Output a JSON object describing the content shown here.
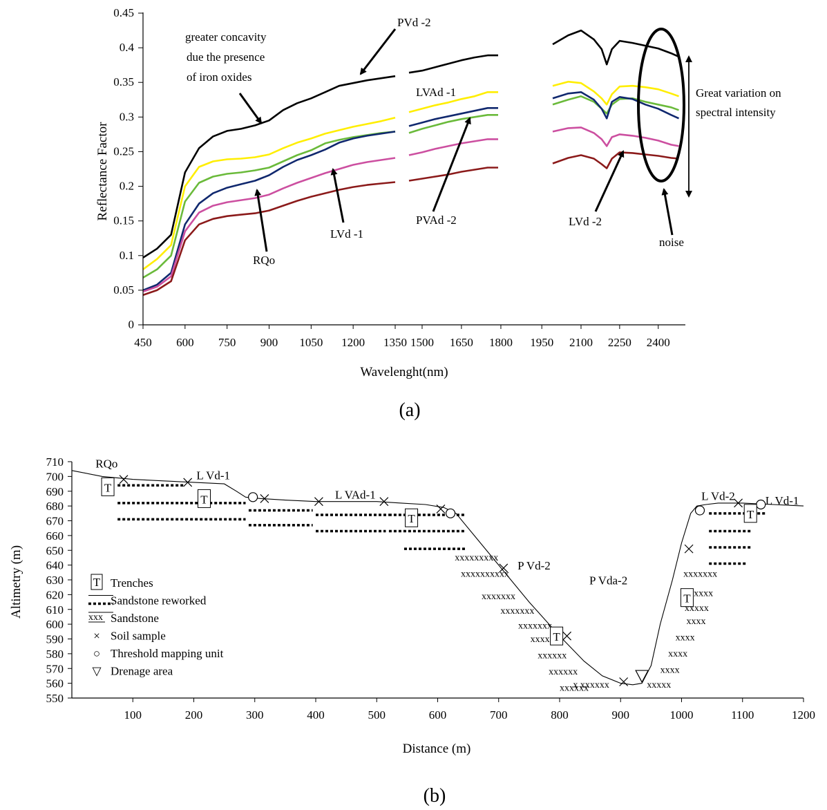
{
  "captions": {
    "a": "(a)",
    "b": "(b)"
  },
  "chart_data": [
    {
      "type": "line",
      "ylabel": "Reflectance Factor",
      "xlabel": "Wavelenght(nm)",
      "xlim": [
        450,
        2500
      ],
      "ylim": [
        0,
        0.45
      ],
      "xticks": [
        450,
        600,
        750,
        900,
        1050,
        1200,
        1350,
        1500,
        1650,
        1800,
        1950,
        2100,
        2250,
        2400
      ],
      "yticks": [
        0,
        0.05,
        0.1,
        0.15,
        0.2,
        0.25,
        0.3,
        0.35,
        0.4,
        0.45
      ],
      "ytick_labels": [
        "0",
        "0.05",
        "0.1",
        "0.15",
        "0.2",
        "0.25",
        "0.3",
        "0.35",
        "0.4",
        "0.45"
      ],
      "gaps": [
        [
          1350,
          1450
        ],
        [
          1790,
          1990
        ]
      ],
      "series": [
        {
          "name": "PVd -2",
          "color": "#000000",
          "x": [
            450,
            500,
            550,
            600,
            650,
            700,
            750,
            800,
            850,
            900,
            950,
            1000,
            1050,
            1100,
            1150,
            1200,
            1250,
            1300,
            1350,
            1450,
            1500,
            1550,
            1600,
            1650,
            1700,
            1750,
            1790,
            1990,
            2050,
            2100,
            2150,
            2180,
            2200,
            2220,
            2250,
            2300,
            2350,
            2400,
            2450,
            2480
          ],
          "y": [
            0.097,
            0.11,
            0.13,
            0.22,
            0.255,
            0.272,
            0.28,
            0.283,
            0.288,
            0.295,
            0.31,
            0.32,
            0.327,
            0.336,
            0.345,
            0.349,
            0.353,
            0.356,
            0.359,
            0.364,
            0.367,
            0.372,
            0.377,
            0.382,
            0.386,
            0.389,
            0.389,
            0.405,
            0.418,
            0.425,
            0.412,
            0.398,
            0.376,
            0.398,
            0.41,
            0.407,
            0.403,
            0.399,
            0.392,
            0.387
          ]
        },
        {
          "name": "LVAd -1",
          "color": "#ffee00",
          "x": [
            450,
            500,
            550,
            600,
            650,
            700,
            750,
            800,
            850,
            900,
            950,
            1000,
            1050,
            1100,
            1150,
            1200,
            1250,
            1300,
            1350,
            1450,
            1500,
            1550,
            1600,
            1650,
            1700,
            1750,
            1790,
            1990,
            2050,
            2100,
            2150,
            2180,
            2200,
            2220,
            2250,
            2300,
            2350,
            2400,
            2450,
            2480
          ],
          "y": [
            0.08,
            0.095,
            0.115,
            0.2,
            0.228,
            0.236,
            0.239,
            0.24,
            0.242,
            0.246,
            0.255,
            0.263,
            0.269,
            0.276,
            0.281,
            0.286,
            0.29,
            0.294,
            0.299,
            0.307,
            0.312,
            0.317,
            0.321,
            0.326,
            0.33,
            0.336,
            0.336,
            0.345,
            0.351,
            0.349,
            0.337,
            0.327,
            0.318,
            0.333,
            0.344,
            0.345,
            0.343,
            0.34,
            0.334,
            0.33
          ]
        },
        {
          "name": "PVAd -2",
          "color": "#6aba3a",
          "x": [
            450,
            500,
            550,
            600,
            650,
            700,
            750,
            800,
            850,
            900,
            950,
            1000,
            1050,
            1100,
            1150,
            1200,
            1250,
            1300,
            1350,
            1450,
            1500,
            1550,
            1600,
            1650,
            1700,
            1750,
            1790,
            1990,
            2050,
            2100,
            2150,
            2180,
            2200,
            2220,
            2250,
            2300,
            2350,
            2400,
            2450,
            2480
          ],
          "y": [
            0.068,
            0.08,
            0.1,
            0.178,
            0.205,
            0.214,
            0.218,
            0.22,
            0.223,
            0.227,
            0.236,
            0.245,
            0.252,
            0.262,
            0.267,
            0.271,
            0.274,
            0.277,
            0.279,
            0.277,
            0.283,
            0.288,
            0.293,
            0.297,
            0.3,
            0.303,
            0.303,
            0.318,
            0.325,
            0.33,
            0.322,
            0.312,
            0.305,
            0.318,
            0.326,
            0.327,
            0.322,
            0.318,
            0.314,
            0.31
          ]
        },
        {
          "name": "RQo",
          "color": "#10286e",
          "x": [
            450,
            500,
            550,
            600,
            650,
            700,
            750,
            800,
            850,
            900,
            950,
            1000,
            1050,
            1100,
            1150,
            1200,
            1250,
            1300,
            1350,
            1450,
            1500,
            1550,
            1600,
            1650,
            1700,
            1750,
            1790,
            1990,
            2050,
            2100,
            2150,
            2180,
            2200,
            2220,
            2250,
            2300,
            2350,
            2400,
            2450,
            2480
          ],
          "y": [
            0.05,
            0.058,
            0.075,
            0.145,
            0.175,
            0.19,
            0.198,
            0.203,
            0.208,
            0.216,
            0.228,
            0.238,
            0.245,
            0.253,
            0.263,
            0.269,
            0.273,
            0.276,
            0.279,
            0.287,
            0.292,
            0.297,
            0.301,
            0.305,
            0.309,
            0.313,
            0.313,
            0.327,
            0.334,
            0.336,
            0.325,
            0.312,
            0.298,
            0.322,
            0.329,
            0.326,
            0.318,
            0.312,
            0.303,
            0.298
          ]
        },
        {
          "name": "LVd -1",
          "color": "#cc4fa0",
          "x": [
            450,
            500,
            550,
            600,
            650,
            700,
            750,
            800,
            850,
            900,
            950,
            1000,
            1050,
            1100,
            1150,
            1200,
            1250,
            1300,
            1350,
            1450,
            1500,
            1550,
            1600,
            1650,
            1700,
            1750,
            1790,
            1990,
            2050,
            2100,
            2150,
            2180,
            2200,
            2220,
            2250,
            2300,
            2350,
            2400,
            2450,
            2480
          ],
          "y": [
            0.048,
            0.055,
            0.07,
            0.135,
            0.162,
            0.172,
            0.177,
            0.18,
            0.183,
            0.188,
            0.197,
            0.205,
            0.212,
            0.219,
            0.225,
            0.231,
            0.235,
            0.238,
            0.241,
            0.245,
            0.249,
            0.254,
            0.258,
            0.262,
            0.265,
            0.268,
            0.268,
            0.279,
            0.284,
            0.285,
            0.277,
            0.268,
            0.258,
            0.271,
            0.275,
            0.273,
            0.27,
            0.266,
            0.26,
            0.258
          ]
        },
        {
          "name": "LVd -2",
          "color": "#8b1a1a",
          "x": [
            450,
            500,
            550,
            600,
            650,
            700,
            750,
            800,
            850,
            900,
            950,
            1000,
            1050,
            1100,
            1150,
            1200,
            1250,
            1300,
            1350,
            1450,
            1500,
            1550,
            1600,
            1650,
            1700,
            1750,
            1790,
            1990,
            2050,
            2100,
            2150,
            2180,
            2200,
            2220,
            2250,
            2300,
            2350,
            2400,
            2450,
            2480
          ],
          "y": [
            0.043,
            0.05,
            0.063,
            0.122,
            0.145,
            0.153,
            0.157,
            0.159,
            0.161,
            0.165,
            0.172,
            0.179,
            0.185,
            0.19,
            0.195,
            0.199,
            0.202,
            0.204,
            0.206,
            0.208,
            0.211,
            0.214,
            0.217,
            0.221,
            0.224,
            0.227,
            0.227,
            0.233,
            0.241,
            0.245,
            0.24,
            0.232,
            0.226,
            0.24,
            0.249,
            0.248,
            0.246,
            0.244,
            0.241,
            0.24
          ]
        }
      ],
      "annotations": {
        "concavity": [
          "greater concavity",
          "due the presence",
          "of iron oxides"
        ],
        "variation": [
          "Great variation on",
          "spectral intensity"
        ],
        "noise": "noise"
      }
    },
    {
      "type": "line",
      "ylabel": "Altimetry (m)",
      "xlabel": "Distance (m)",
      "xlim": [
        0,
        1200
      ],
      "ylim": [
        550,
        710
      ],
      "xticks": [
        100,
        200,
        300,
        400,
        500,
        600,
        700,
        800,
        900,
        1000,
        1100,
        1200
      ],
      "yticks": [
        550,
        560,
        570,
        580,
        590,
        600,
        610,
        620,
        630,
        640,
        650,
        660,
        670,
        680,
        690,
        700,
        710
      ],
      "profile": {
        "x": [
          0,
          50,
          100,
          150,
          200,
          250,
          270,
          285,
          310,
          350,
          400,
          450,
          500,
          540,
          580,
          610,
          630,
          660,
          700,
          750,
          800,
          840,
          870,
          900,
          920,
          935,
          950,
          965,
          985,
          1000,
          1015,
          1025,
          1040,
          1060,
          1100,
          1150,
          1200
        ],
        "y": [
          704,
          700,
          698,
          697,
          696,
          695,
          690,
          686,
          685,
          684,
          683,
          683,
          683,
          682,
          681,
          679,
          675,
          660,
          640,
          615,
          592,
          575,
          565,
          560,
          559,
          560,
          572,
          600,
          630,
          655,
          675,
          680,
          681,
          682,
          682,
          681,
          680
        ]
      },
      "labels": [
        {
          "text": "RQo",
          "x": 57,
          "y": 706
        },
        {
          "text": "L Vd-1",
          "x": 232,
          "y": 698
        },
        {
          "text": "L VAd-1",
          "x": 465,
          "y": 685
        },
        {
          "text": "P Vd-2",
          "x": 758,
          "y": 637
        },
        {
          "text": "P Vda-2",
          "x": 880,
          "y": 627
        },
        {
          "text": "L Vd-2",
          "x": 1060,
          "y": 684
        },
        {
          "text": "L Vd-1",
          "x": 1165,
          "y": 681
        }
      ],
      "soil_samples": [
        [
          85,
          698
        ],
        [
          190,
          696
        ],
        [
          316,
          685
        ],
        [
          405,
          683
        ],
        [
          512,
          683
        ],
        [
          605,
          678
        ],
        [
          708,
          638
        ],
        [
          812,
          592
        ],
        [
          905,
          561
        ],
        [
          1012,
          651
        ],
        [
          1093,
          682
        ]
      ],
      "thresholds": [
        [
          297,
          686
        ],
        [
          621,
          675
        ],
        [
          1030,
          677
        ],
        [
          1130,
          681
        ]
      ],
      "drainage": [
        [
          935,
          564
        ]
      ],
      "trenches": [
        [
          59,
          693
        ],
        [
          217,
          685
        ],
        [
          557,
          672
        ],
        [
          795,
          592
        ],
        [
          1009,
          618
        ],
        [
          1113,
          675
        ]
      ],
      "legend": [
        {
          "symbol": "T",
          "text": "Trenches"
        },
        {
          "symbol": "dotted",
          "text": "Sandstone reworked"
        },
        {
          "symbol": "xxx",
          "text": "Sandstone"
        },
        {
          "symbol": "×",
          "text": "Soil sample"
        },
        {
          "symbol": "○",
          "text": "Threshold mapping unit"
        },
        {
          "symbol": "▽",
          "text": "Drenage area"
        }
      ],
      "sandstone_reworked": [
        [
          [
            75,
            694
          ],
          [
            185,
            694
          ]
        ],
        [
          [
            75,
            682
          ],
          [
            285,
            682
          ]
        ],
        [
          [
            75,
            671
          ],
          [
            285,
            671
          ]
        ],
        [
          [
            290,
            677
          ],
          [
            395,
            677
          ]
        ],
        [
          [
            290,
            667
          ],
          [
            395,
            667
          ]
        ],
        [
          [
            400,
            674
          ],
          [
            520,
            674
          ]
        ],
        [
          [
            400,
            663
          ],
          [
            515,
            663
          ]
        ],
        [
          [
            520,
            674
          ],
          [
            645,
            674
          ]
        ],
        [
          [
            520,
            663
          ],
          [
            645,
            663
          ]
        ],
        [
          [
            545,
            651
          ],
          [
            645,
            651
          ]
        ],
        [
          [
            1045,
            675
          ],
          [
            1140,
            675
          ]
        ],
        [
          [
            1045,
            663
          ],
          [
            1115,
            663
          ]
        ],
        [
          [
            1045,
            652
          ],
          [
            1115,
            652
          ]
        ],
        [
          [
            1045,
            641
          ],
          [
            1108,
            641
          ]
        ]
      ],
      "sandstone": [
        {
          "text": "xxxxxxxxx",
          "x": 628,
          "y": 643
        },
        {
          "text": "xxxxxxxxxx",
          "x": 638,
          "y": 632
        },
        {
          "text": "xxxxxxx",
          "x": 672,
          "y": 617
        },
        {
          "text": "xxxxxxx",
          "x": 703,
          "y": 607
        },
        {
          "text": "xxxxxxx",
          "x": 732,
          "y": 597
        },
        {
          "text": "xxxx",
          "x": 752,
          "y": 588
        },
        {
          "text": "xxxxxx",
          "x": 764,
          "y": 577
        },
        {
          "text": "xxxxxx",
          "x": 782,
          "y": 566
        },
        {
          "text": "xxxxxx",
          "x": 800,
          "y": 555
        },
        {
          "text": "x xxxxxx",
          "x": 822,
          "y": 557
        },
        {
          "text": "xxxxxxx",
          "x": 1003,
          "y": 632
        },
        {
          "text": "xxxxx",
          "x": 1012,
          "y": 619
        },
        {
          "text": "xxxxx",
          "x": 1005,
          "y": 609
        },
        {
          "text": "xxxx",
          "x": 1008,
          "y": 600
        },
        {
          "text": "xxxx",
          "x": 990,
          "y": 589
        },
        {
          "text": "xxxx",
          "x": 978,
          "y": 578
        },
        {
          "text": "xxxx",
          "x": 965,
          "y": 567
        },
        {
          "text": "xxxxx",
          "x": 943,
          "y": 557
        }
      ]
    }
  ]
}
